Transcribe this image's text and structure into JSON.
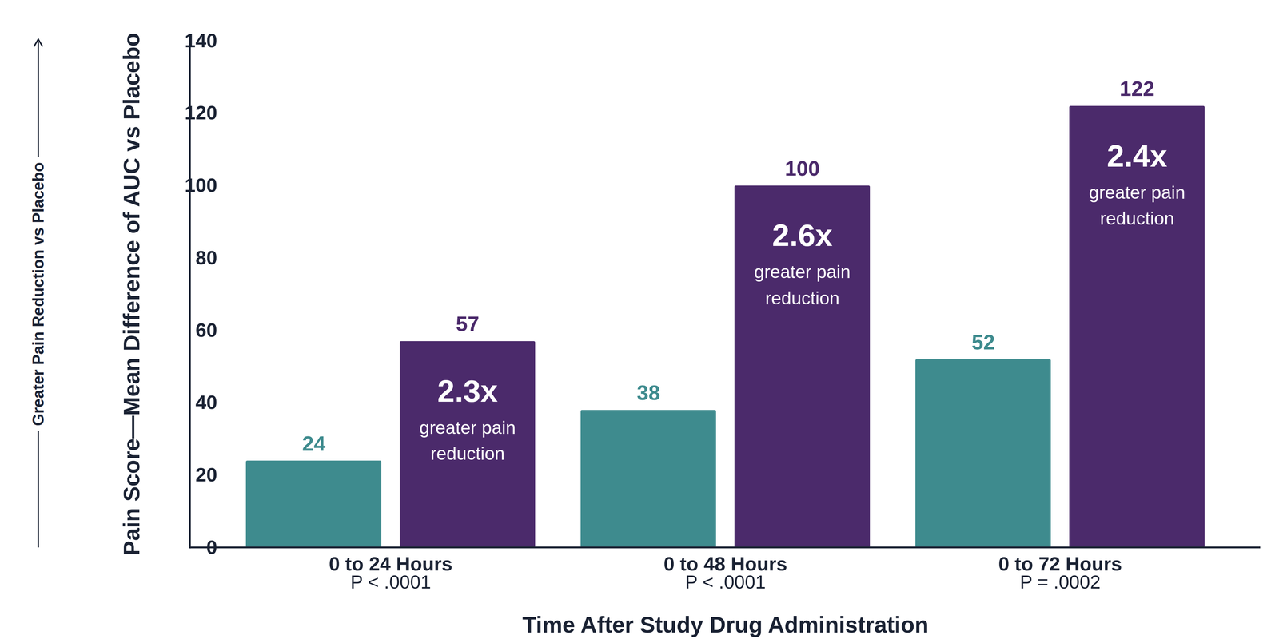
{
  "chart_data": {
    "type": "bar",
    "categories": [
      "0 to 24 Hours",
      "0 to 48 Hours",
      "0 to 72 Hours"
    ],
    "category_notes": [
      "P < .0001",
      "P < .0001",
      "P = .0002"
    ],
    "series": [
      {
        "color": "#3e8b8e",
        "values": [
          24,
          38,
          52
        ]
      },
      {
        "color": "#4b2a6b",
        "values": [
          57,
          100,
          122
        ]
      }
    ],
    "xlabel": "Time After Study Drug Administration",
    "ylabel": "Pain Score—Mean Difference of AUC vs Placebo",
    "ylabel_note": "Greater Pain Reduction vs Placebo",
    "ylim": [
      0,
      140
    ],
    "yticks": [
      0,
      20,
      40,
      60,
      80,
      100,
      120,
      140
    ],
    "grid": false,
    "data_labels": true,
    "annotations": [
      {
        "category": "0 to 24 Hours",
        "text": "2.3x",
        "subtext": "greater pain reduction"
      },
      {
        "category": "0 to 48 Hours",
        "text": "2.6x",
        "subtext": "greater pain reduction"
      },
      {
        "category": "0 to 72 Hours",
        "text": "2.4x",
        "subtext": "greater pain reduction"
      }
    ]
  }
}
